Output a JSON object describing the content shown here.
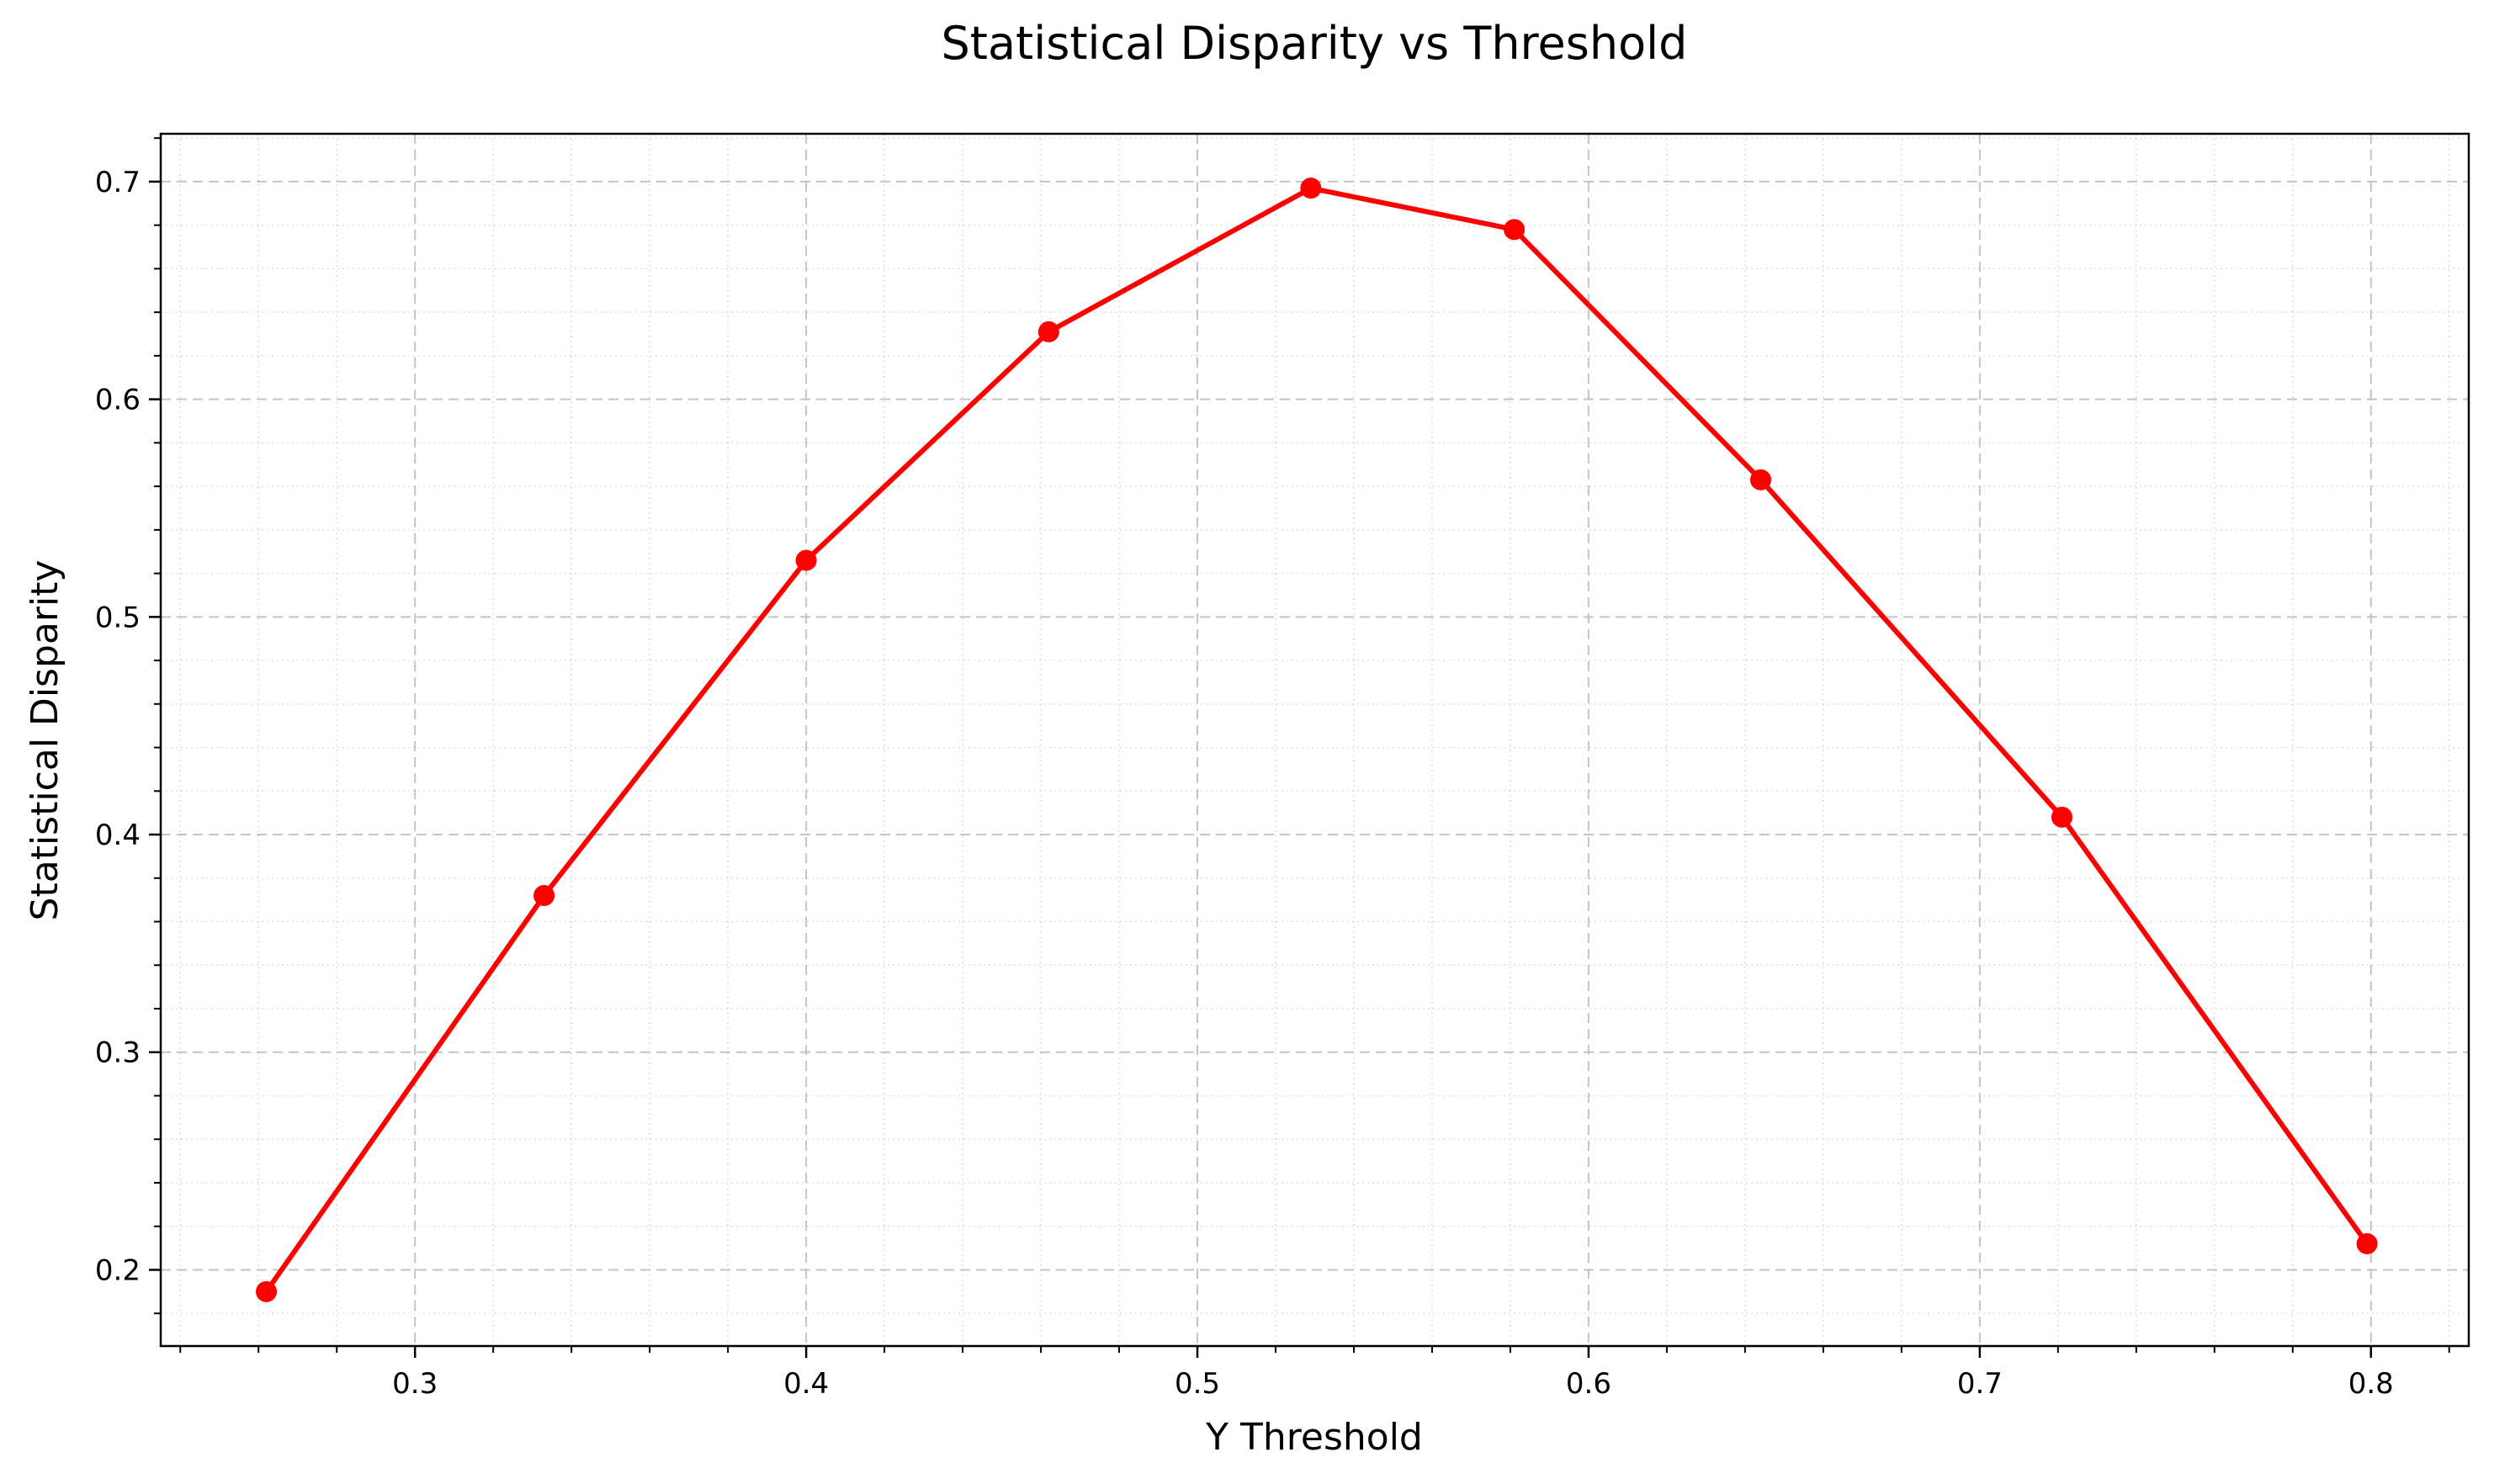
{
  "chart_data": {
    "type": "line",
    "title": "Statistical Disparity vs Threshold",
    "xlabel": "Y Threshold",
    "ylabel": "Statistical Disparity",
    "xlim": [
      0.235,
      0.825
    ],
    "ylim": [
      0.165,
      0.722
    ],
    "xticks": [
      0.3,
      0.4,
      0.5,
      0.6,
      0.7,
      0.8
    ],
    "xtick_labels": [
      "0.3",
      "0.4",
      "0.5",
      "0.6",
      "0.7",
      "0.8"
    ],
    "yticks": [
      0.2,
      0.3,
      0.4,
      0.5,
      0.6,
      0.7
    ],
    "ytick_labels": [
      "0.2",
      "0.3",
      "0.4",
      "0.5",
      "0.6",
      "0.7"
    ],
    "grid": "major dashed, minor dotted",
    "series": [
      {
        "color": "#ff0000",
        "marker": "circle",
        "x": [
          0.262,
          0.333,
          0.4,
          0.462,
          0.529,
          0.581,
          0.644,
          0.721,
          0.799
        ],
        "y": [
          0.19,
          0.372,
          0.526,
          0.631,
          0.697,
          0.678,
          0.563,
          0.408,
          0.212
        ]
      }
    ]
  }
}
